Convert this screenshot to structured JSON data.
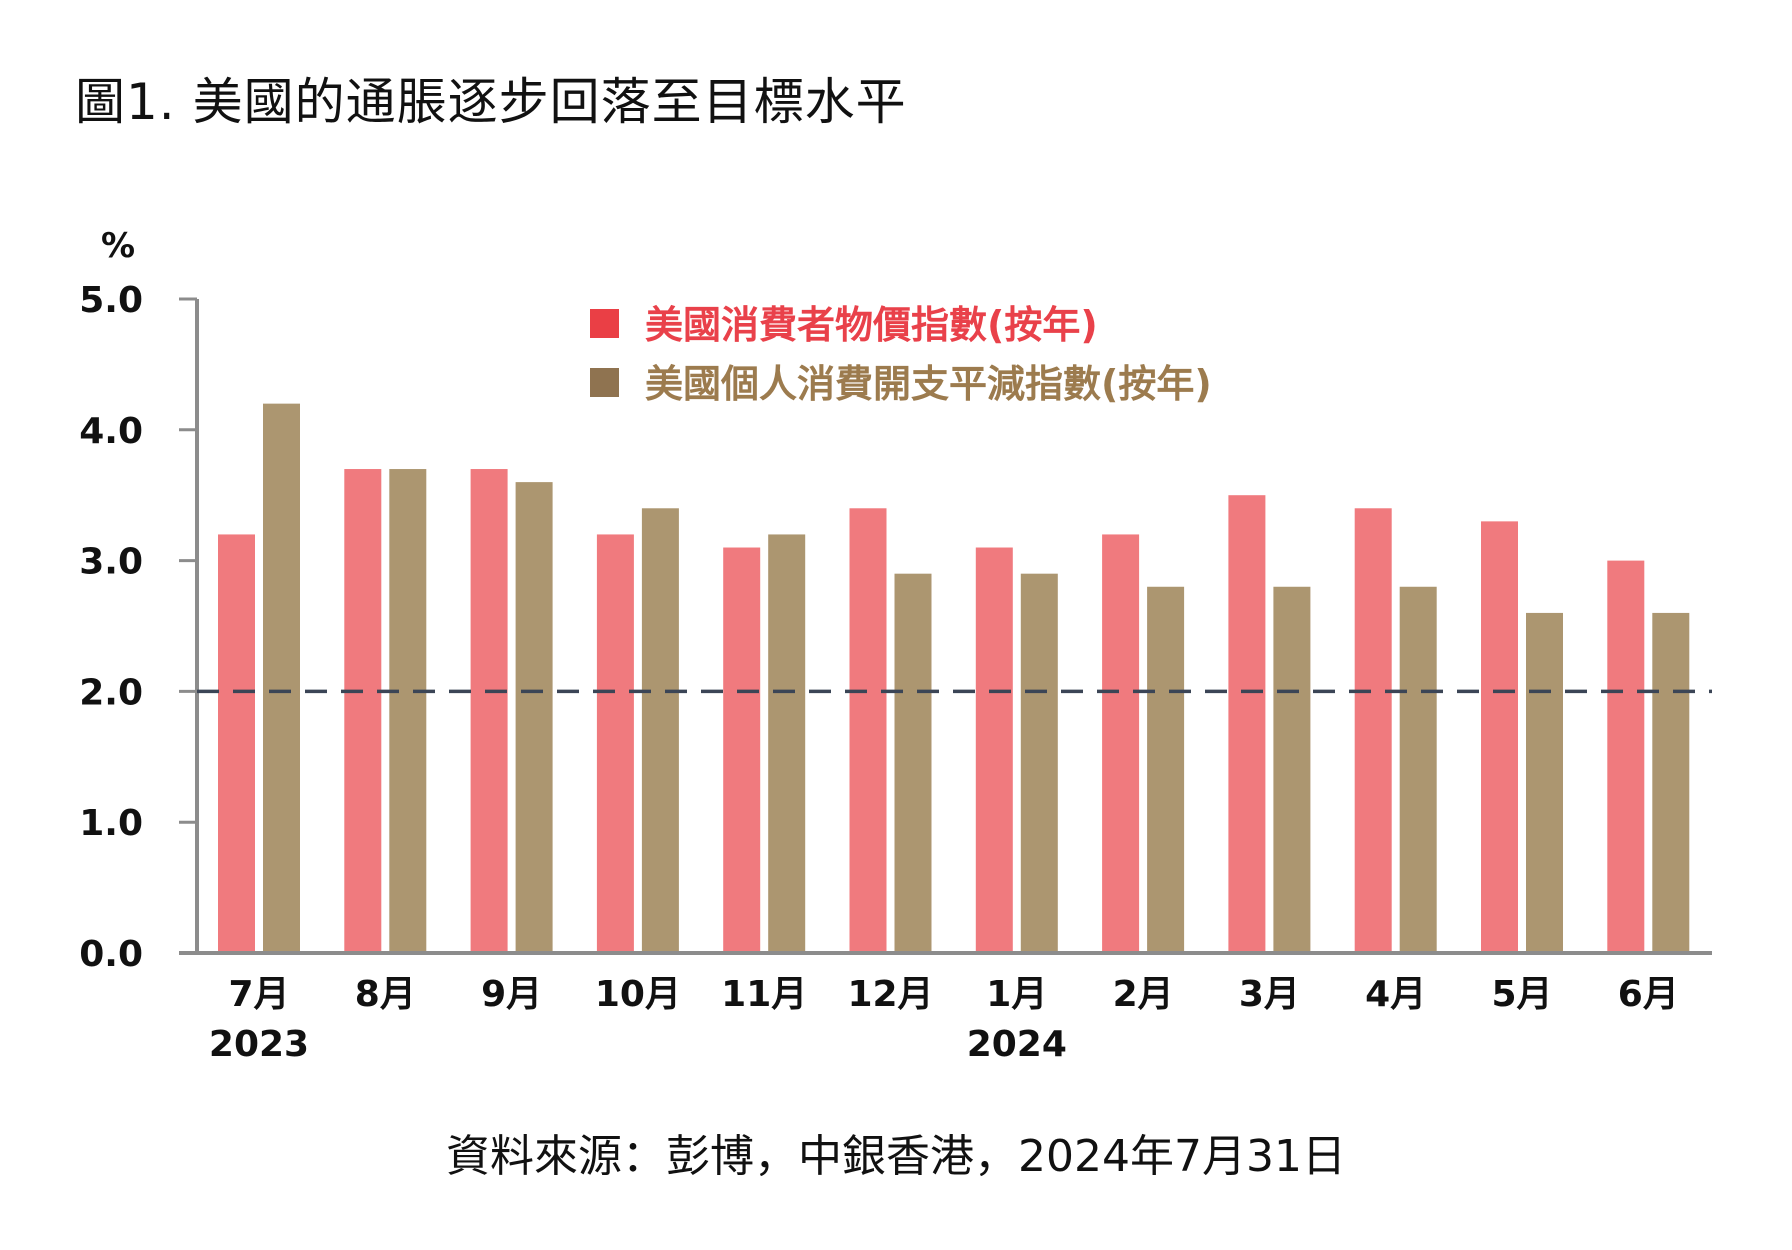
{
  "page": {
    "title": "圖1. 美國的通脹逐步回落至目標水平",
    "source": "資料來源：彭博，中銀香港，2024年7月31日"
  },
  "chart_data": {
    "type": "bar",
    "ylabel": "%",
    "ylim": [
      0,
      5
    ],
    "yticks": [
      "0.0",
      "1.0",
      "2.0",
      "3.0",
      "4.0",
      "5.0"
    ],
    "categories": [
      "7月",
      "8月",
      "9月",
      "10月",
      "11月",
      "12月",
      "1月",
      "2月",
      "3月",
      "4月",
      "5月",
      "6月"
    ],
    "year_labels": [
      {
        "category_index": 0,
        "text": "2023"
      },
      {
        "category_index": 6,
        "text": "2024"
      }
    ],
    "reference_line": {
      "value": 2.0,
      "style": "dashed",
      "color": "#3b4556"
    },
    "legend_position": "top-center",
    "series": [
      {
        "name": "美國消費者物價指數(按年)",
        "color": "#f07a7e",
        "legend_text_color": "#e9414a",
        "legend_marker_color": "#ea3f45",
        "values": [
          3.2,
          3.7,
          3.7,
          3.2,
          3.1,
          3.4,
          3.1,
          3.2,
          3.5,
          3.4,
          3.3,
          3.0
        ]
      },
      {
        "name": "美國個人消費開支平減指數(按年)",
        "color": "#ac9670",
        "legend_text_color": "#9c7b4e",
        "legend_marker_color": "#8f7350",
        "values": [
          4.2,
          3.7,
          3.6,
          3.4,
          3.2,
          2.9,
          2.9,
          2.8,
          2.8,
          2.8,
          2.6,
          2.6
        ]
      }
    ]
  }
}
